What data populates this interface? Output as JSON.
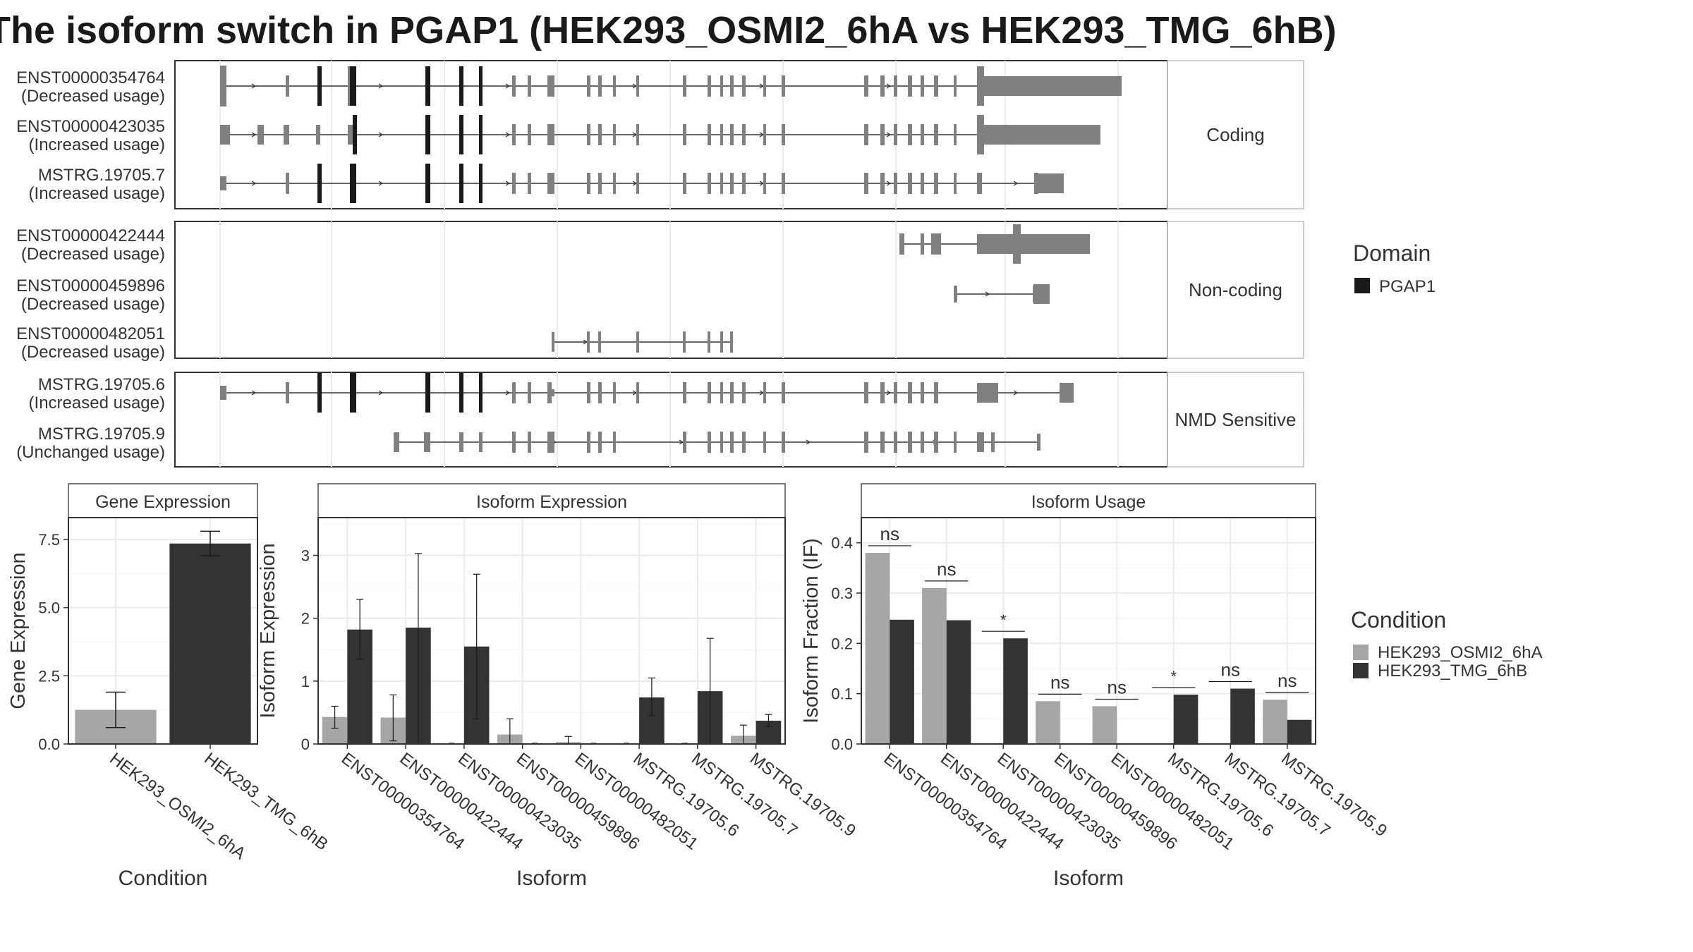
{
  "title": "The isoform switch in PGAP1 (HEK293_OSMI2_6hA vs HEK293_TMG_6hB)",
  "legend_domain": {
    "title": "Domain",
    "items": [
      {
        "label": "PGAP1",
        "color": "#1a1a1a"
      }
    ]
  },
  "legend_condition": {
    "title": "Condition",
    "items": [
      {
        "label": "HEK293_OSMI2_6hA",
        "color": "#a6a6a6"
      },
      {
        "label": "HEK293_TMG_6hB",
        "color": "#333333"
      }
    ]
  },
  "transcript_panels": [
    {
      "label": "Coding",
      "rows": [
        {
          "id": "ENST00000354764",
          "usage": "(Decreased usage)"
        },
        {
          "id": "ENST00000423035",
          "usage": "(Increased usage)"
        },
        {
          "id": "MSTRG.19705.7",
          "usage": "(Increased usage)"
        }
      ]
    },
    {
      "label": "Non-coding",
      "rows": [
        {
          "id": "ENST00000422444",
          "usage": "(Decreased usage)"
        },
        {
          "id": "ENST00000459896",
          "usage": "(Decreased usage)"
        },
        {
          "id": "ENST00000482051",
          "usage": "(Decreased usage)"
        }
      ]
    },
    {
      "label": "NMD Sensitive",
      "rows": [
        {
          "id": "MSTRG.19705.6",
          "usage": "(Increased usage)"
        },
        {
          "id": "MSTRG.19705.9",
          "usage": "(Unchanged usage)"
        }
      ]
    }
  ],
  "chart_data": [
    {
      "type": "bar",
      "panel_title": "Gene Expression",
      "xlabel": "Condition",
      "ylabel": "Gene Expression",
      "ylim": [
        0,
        8.3
      ],
      "yticks": [
        "0.0",
        "2.5",
        "5.0",
        "7.5"
      ],
      "categories": [
        "HEK293_OSMI2_6hA",
        "HEK293_TMG_6hB"
      ],
      "values": [
        1.25,
        7.35
      ],
      "error_low": [
        0.6,
        6.9
      ],
      "error_high": [
        1.9,
        7.8
      ]
    },
    {
      "type": "bar",
      "panel_title": "Isoform Expression",
      "xlabel": "Isoform",
      "ylabel": "Isoform Expression",
      "ylim": [
        0,
        3.6
      ],
      "yticks": [
        "0",
        "1",
        "2",
        "3"
      ],
      "categories": [
        "ENST00000354764",
        "ENST00000422444",
        "ENST00000423035",
        "ENST00000459896",
        "ENST00000482051",
        "MSTRG.19705.6",
        "MSTRG.19705.7",
        "MSTRG.19705.9"
      ],
      "series": [
        {
          "name": "HEK293_OSMI2_6hA",
          "values": [
            0.43,
            0.42,
            0.0,
            0.15,
            0.03,
            0.0,
            0.0,
            0.13
          ],
          "error_low": [
            0.25,
            0.05,
            0.0,
            0.0,
            0.0,
            0.0,
            0.0,
            0.0
          ],
          "error_high": [
            0.6,
            0.78,
            0.0,
            0.4,
            0.12,
            0.0,
            0.0,
            0.3
          ]
        },
        {
          "name": "HEK293_TMG_6hB",
          "values": [
            1.82,
            1.85,
            1.55,
            0.0,
            0.0,
            0.74,
            0.84,
            0.37
          ],
          "error_low": [
            1.35,
            0.0,
            0.4,
            0.0,
            0.0,
            0.45,
            0.0,
            0.28
          ],
          "error_high": [
            2.3,
            3.03,
            2.7,
            0.0,
            0.0,
            1.05,
            1.68,
            0.47
          ]
        }
      ]
    },
    {
      "type": "bar",
      "panel_title": "Isoform Usage",
      "xlabel": "Isoform",
      "ylabel": "Isoform Fraction (IF)",
      "ylim": [
        0,
        0.45
      ],
      "yticks": [
        "0.0",
        "0.1",
        "0.2",
        "0.3",
        "0.4"
      ],
      "categories": [
        "ENST00000354764",
        "ENST00000422444",
        "ENST00000423035",
        "ENST00000459896",
        "ENST00000482051",
        "MSTRG.19705.6",
        "MSTRG.19705.7",
        "MSTRG.19705.9"
      ],
      "series": [
        {
          "name": "HEK293_OSMI2_6hA",
          "values": [
            0.38,
            0.31,
            0.0,
            0.085,
            0.075,
            0.0,
            0.0,
            0.088
          ]
        },
        {
          "name": "HEK293_TMG_6hB",
          "values": [
            0.247,
            0.246,
            0.21,
            0.0,
            0.0,
            0.098,
            0.11,
            0.048
          ]
        }
      ],
      "significance": [
        "ns",
        "ns",
        "*",
        "ns",
        "ns",
        "*",
        "ns",
        "ns"
      ]
    }
  ]
}
